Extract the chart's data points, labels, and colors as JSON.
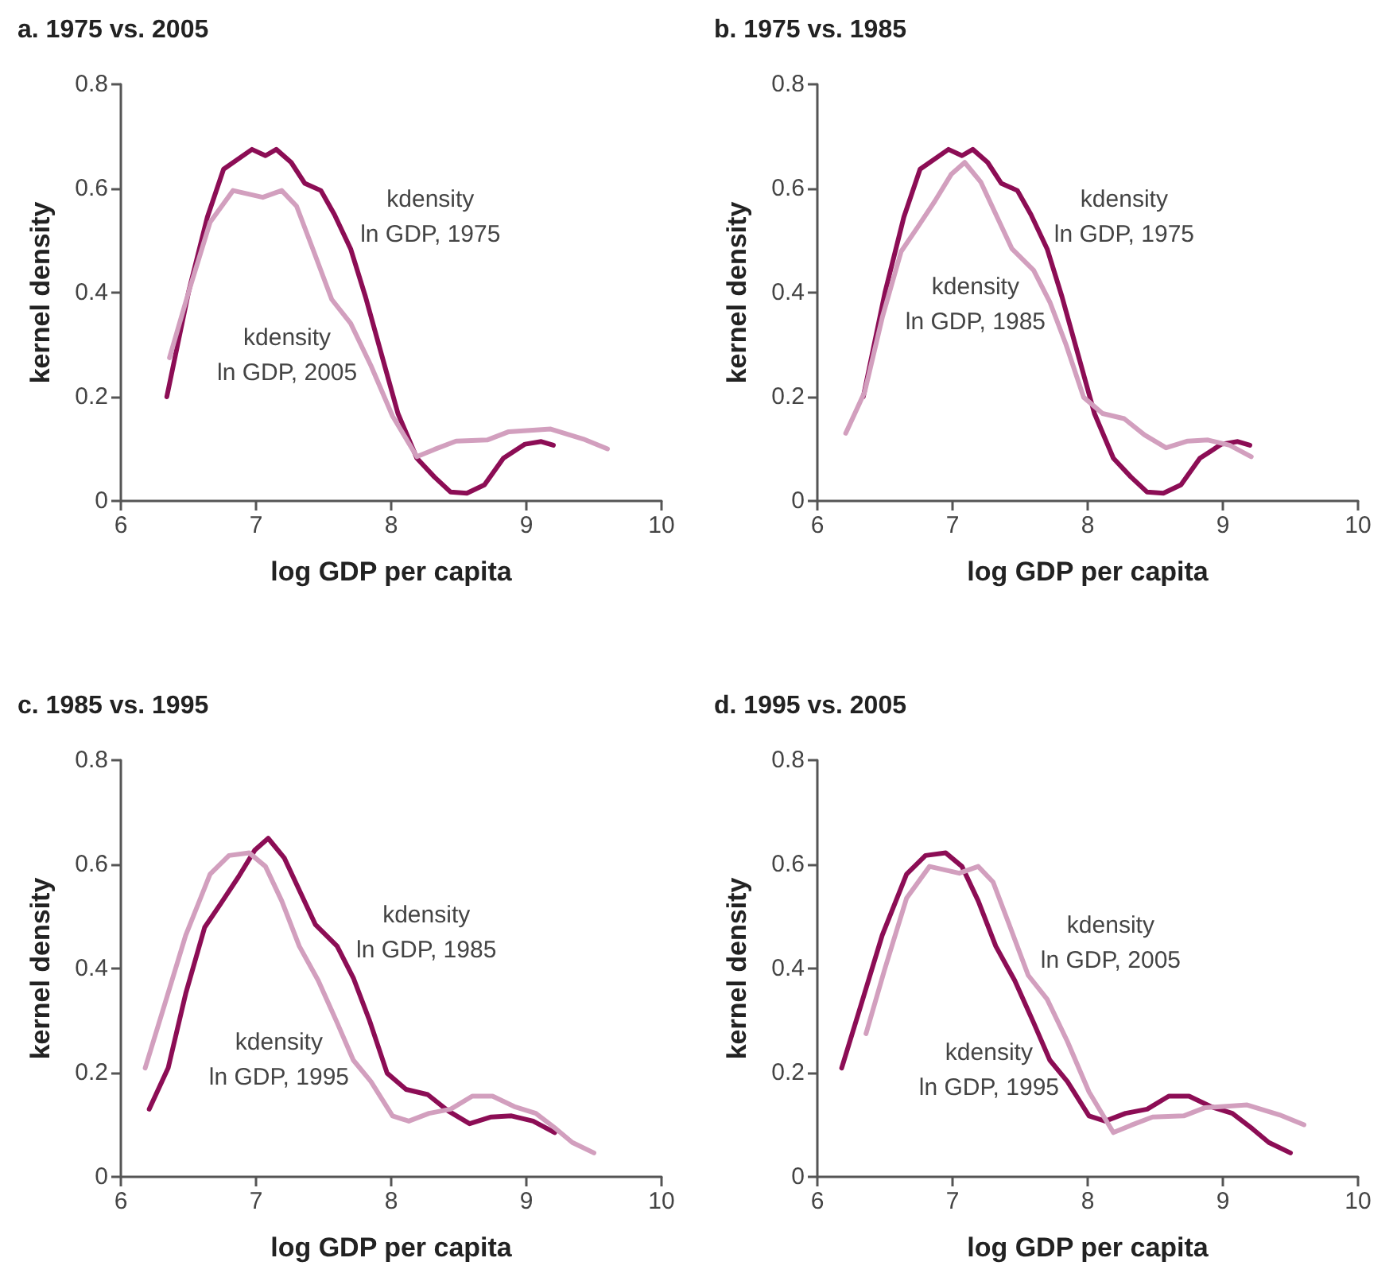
{
  "chart_data": [
    {
      "type": "line",
      "title": "a. 1975 vs. 2005",
      "xlabel": "log GDP per capita",
      "ylabel": "kernel density",
      "xlim": [
        6,
        10
      ],
      "xticks": [
        6,
        7,
        8,
        9,
        10
      ],
      "ylim": [
        0,
        0.8
      ],
      "yticks": [
        0,
        0.2,
        0.4,
        0.6,
        0.8
      ],
      "grid": false,
      "marker": "none",
      "series": [
        {
          "name": "kdensity\nln GDP, 1975",
          "color": "#8c0d55",
          "x": [
            6.34,
            6.5,
            6.64,
            6.76,
            6.97,
            7.07,
            7.15,
            7.26,
            7.36,
            7.48,
            7.58,
            7.7,
            7.81,
            7.93,
            8.05,
            8.19,
            8.32,
            8.44,
            8.56,
            8.69,
            8.83,
            8.99,
            9.11,
            9.2
          ],
          "values": [
            0.2,
            0.4,
            0.545,
            0.637,
            0.675,
            0.663,
            0.675,
            0.65,
            0.61,
            0.596,
            0.55,
            0.484,
            0.392,
            0.28,
            0.168,
            0.082,
            0.046,
            0.017,
            0.015,
            0.031,
            0.082,
            0.109,
            0.114,
            0.107
          ]
        },
        {
          "name": "kdensity\nln GDP, 2005",
          "color": "#d29fbe",
          "x": [
            6.36,
            6.5,
            6.66,
            6.83,
            7.05,
            7.19,
            7.3,
            7.42,
            7.56,
            7.7,
            7.85,
            8.01,
            8.19,
            8.32,
            8.48,
            8.71,
            8.87,
            9.18,
            9.42,
            9.6
          ],
          "values": [
            0.275,
            0.4,
            0.535,
            0.596,
            0.583,
            0.596,
            0.566,
            0.484,
            0.387,
            0.341,
            0.26,
            0.163,
            0.085,
            0.099,
            0.115,
            0.117,
            0.133,
            0.138,
            0.119,
            0.1
          ]
        }
      ]
    },
    {
      "type": "line",
      "title": "b. 1975 vs. 1985",
      "xlabel": "log GDP per capita",
      "ylabel": "kernel density",
      "xlim": [
        6,
        10
      ],
      "xticks": [
        6,
        7,
        8,
        9,
        10
      ],
      "ylim": [
        0,
        0.8
      ],
      "yticks": [
        0,
        0.2,
        0.4,
        0.6,
        0.8
      ],
      "grid": false,
      "marker": "none",
      "series": [
        {
          "name": "kdensity\nln GDP, 1975",
          "color": "#8c0d55",
          "x": [
            6.34,
            6.5,
            6.64,
            6.76,
            6.97,
            7.07,
            7.15,
            7.26,
            7.36,
            7.48,
            7.58,
            7.7,
            7.81,
            7.93,
            8.05,
            8.19,
            8.32,
            8.44,
            8.56,
            8.69,
            8.83,
            8.99,
            9.11,
            9.2
          ],
          "values": [
            0.2,
            0.4,
            0.545,
            0.637,
            0.675,
            0.663,
            0.675,
            0.65,
            0.61,
            0.596,
            0.55,
            0.484,
            0.392,
            0.28,
            0.168,
            0.082,
            0.046,
            0.017,
            0.015,
            0.031,
            0.082,
            0.109,
            0.114,
            0.107
          ]
        },
        {
          "name": "kdensity\nln GDP, 1985",
          "color": "#d29fbe",
          "x": [
            6.21,
            6.35,
            6.48,
            6.62,
            6.74,
            6.87,
            6.99,
            7.09,
            7.21,
            7.33,
            7.44,
            7.6,
            7.72,
            7.84,
            7.97,
            8.11,
            8.27,
            8.42,
            8.58,
            8.74,
            8.89,
            9.05,
            9.21
          ],
          "values": [
            0.13,
            0.209,
            0.352,
            0.479,
            0.525,
            0.576,
            0.627,
            0.65,
            0.612,
            0.545,
            0.484,
            0.443,
            0.382,
            0.3,
            0.199,
            0.168,
            0.158,
            0.127,
            0.102,
            0.115,
            0.117,
            0.107,
            0.085
          ]
        }
      ]
    },
    {
      "type": "line",
      "title": "c. 1985 vs. 1995",
      "xlabel": "log GDP per capita",
      "ylabel": "kernel density",
      "xlim": [
        6,
        10
      ],
      "xticks": [
        6,
        7,
        8,
        9,
        10
      ],
      "ylim": [
        0,
        0.8
      ],
      "yticks": [
        0,
        0.2,
        0.4,
        0.6,
        0.8
      ],
      "grid": false,
      "marker": "none",
      "series": [
        {
          "name": "kdensity\nln GDP, 1985",
          "color": "#8c0d55",
          "x": [
            6.21,
            6.35,
            6.48,
            6.62,
            6.74,
            6.87,
            6.99,
            7.09,
            7.21,
            7.33,
            7.44,
            7.6,
            7.72,
            7.84,
            7.97,
            8.11,
            8.27,
            8.42,
            8.58,
            8.74,
            8.89,
            9.05,
            9.21
          ],
          "values": [
            0.13,
            0.209,
            0.352,
            0.479,
            0.525,
            0.576,
            0.627,
            0.65,
            0.612,
            0.545,
            0.484,
            0.443,
            0.382,
            0.3,
            0.199,
            0.168,
            0.158,
            0.127,
            0.102,
            0.115,
            0.117,
            0.107,
            0.085
          ]
        },
        {
          "name": "kdensity\nln GDP, 1995",
          "color": "#d29fbe",
          "x": [
            6.18,
            6.33,
            6.48,
            6.66,
            6.8,
            6.95,
            7.07,
            7.19,
            7.32,
            7.46,
            7.6,
            7.72,
            7.85,
            8.01,
            8.13,
            8.28,
            8.44,
            8.6,
            8.75,
            8.91,
            9.07,
            9.22,
            9.34,
            9.5
          ],
          "values": [
            0.209,
            0.336,
            0.464,
            0.581,
            0.617,
            0.622,
            0.596,
            0.53,
            0.443,
            0.377,
            0.296,
            0.224,
            0.183,
            0.117,
            0.107,
            0.122,
            0.13,
            0.155,
            0.155,
            0.135,
            0.122,
            0.092,
            0.066,
            0.046
          ]
        }
      ]
    },
    {
      "type": "line",
      "title": "d. 1995 vs. 2005",
      "xlabel": "log GDP per capita",
      "ylabel": "kernel density",
      "xlim": [
        6,
        10
      ],
      "xticks": [
        6,
        7,
        8,
        9,
        10
      ],
      "ylim": [
        0,
        0.8
      ],
      "yticks": [
        0,
        0.2,
        0.4,
        0.6,
        0.8
      ],
      "grid": false,
      "marker": "none",
      "series": [
        {
          "name": "kdensity\nln GDP, 1995",
          "color": "#8c0d55",
          "x": [
            6.18,
            6.33,
            6.48,
            6.66,
            6.8,
            6.95,
            7.07,
            7.19,
            7.32,
            7.46,
            7.6,
            7.72,
            7.85,
            8.01,
            8.13,
            8.28,
            8.44,
            8.6,
            8.75,
            8.91,
            9.07,
            9.22,
            9.34,
            9.5
          ],
          "values": [
            0.209,
            0.336,
            0.464,
            0.581,
            0.617,
            0.622,
            0.596,
            0.53,
            0.443,
            0.377,
            0.296,
            0.224,
            0.183,
            0.117,
            0.107,
            0.122,
            0.13,
            0.155,
            0.155,
            0.135,
            0.122,
            0.092,
            0.066,
            0.046
          ]
        },
        {
          "name": "kdensity\nln GDP, 2005",
          "color": "#d29fbe",
          "x": [
            6.36,
            6.5,
            6.66,
            6.83,
            7.05,
            7.19,
            7.3,
            7.42,
            7.56,
            7.7,
            7.85,
            8.01,
            8.19,
            8.32,
            8.48,
            8.71,
            8.87,
            9.18,
            9.42,
            9.6
          ],
          "values": [
            0.275,
            0.4,
            0.535,
            0.596,
            0.583,
            0.596,
            0.566,
            0.484,
            0.387,
            0.341,
            0.26,
            0.163,
            0.085,
            0.099,
            0.115,
            0.117,
            0.133,
            0.138,
            0.119,
            0.1
          ]
        }
      ]
    }
  ]
}
